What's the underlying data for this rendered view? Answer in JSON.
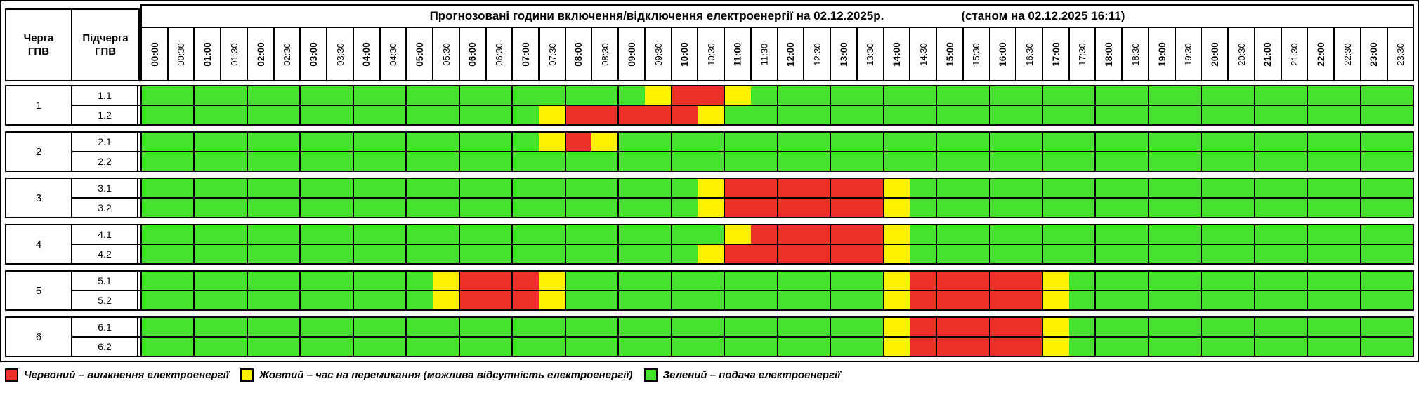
{
  "title": {
    "main": "Прогнозовані години включення/відключення електроенергії на 02.12.2025р.",
    "as_of": "(станом на 02.12.2025 16:11)"
  },
  "left_header": {
    "queue": "Черга\nГПВ",
    "subqueue": "Підчерга\nГПВ"
  },
  "times": [
    "00:00",
    "00:30",
    "01:00",
    "01:30",
    "02:00",
    "02:30",
    "03:00",
    "03:30",
    "04:00",
    "04:30",
    "05:00",
    "05:30",
    "06:00",
    "06:30",
    "07:00",
    "07:30",
    "08:00",
    "08:30",
    "09:00",
    "09:30",
    "10:00",
    "10:30",
    "11:00",
    "11:30",
    "12:00",
    "12:30",
    "13:00",
    "13:30",
    "14:00",
    "14:30",
    "15:00",
    "15:30",
    "16:00",
    "16:30",
    "17:00",
    "17:30",
    "18:00",
    "18:30",
    "19:00",
    "19:30",
    "20:00",
    "20:30",
    "21:00",
    "21:30",
    "22:00",
    "22:30",
    "23:00",
    "23:30"
  ],
  "cell_colors": {
    "G": "#46E22D",
    "Y": "#FFF200",
    "R": "#EB3129"
  },
  "state_names": {
    "G": "power-on",
    "Y": "switching",
    "R": "power-off"
  },
  "groups": [
    {
      "queue": "1",
      "rows": [
        {
          "label": "1.1",
          "cells": "GGGGGGGGGGGGGGGGGGGYRRYGGGGGGGGGGGGGGGGGGGGGGGGG"
        },
        {
          "label": "1.2",
          "cells": "GGGGGGGGGGGGGGGYRRRRRYGGGGGGGGGGGGGGGGGGGGGGGGGG"
        }
      ]
    },
    {
      "queue": "2",
      "rows": [
        {
          "label": "2.1",
          "cells": "GGGGGGGGGGGGGGGYRYGGGGGGGGGGGGGGGGGGGGGGGGGGGGGG"
        },
        {
          "label": "2.2",
          "cells": "GGGGGGGGGGGGGGGGGGGGGGGGGGGGGGGGGGGGGGGGGGGGGGGG"
        }
      ]
    },
    {
      "queue": "3",
      "rows": [
        {
          "label": "3.1",
          "cells": "GGGGGGGGGGGGGGGGGGGGGYRRRRRRYGGGGGGGGGGGGGGGGGGG"
        },
        {
          "label": "3.2",
          "cells": "GGGGGGGGGGGGGGGGGGGGGYRRRRRRYGGGGGGGGGGGGGGGGGGG"
        }
      ]
    },
    {
      "queue": "4",
      "rows": [
        {
          "label": "4.1",
          "cells": "GGGGGGGGGGGGGGGGGGGGGGYRRRRRYGGGGGGGGGGGGGGGGGGG"
        },
        {
          "label": "4.2",
          "cells": "GGGGGGGGGGGGGGGGGGGGGYRRRRRRYGGGGGGGGGGGGGGGGGGG"
        }
      ]
    },
    {
      "queue": "5",
      "rows": [
        {
          "label": "5.1",
          "cells": "GGGGGGGGGGGYRRRYGGGGGGGGGGGGYRRRRRYGGGGGGGGGGGGG"
        },
        {
          "label": "5.2",
          "cells": "GGGGGGGGGGGYRRRYGGGGGGGGGGGGYRRRRRYGGGGGGGGGGGGG"
        }
      ]
    },
    {
      "queue": "6",
      "rows": [
        {
          "label": "6.1",
          "cells": "GGGGGGGGGGGGGGGGGGGGGGGGGGGGYRRRRRYGGGGGGGGGGGGG"
        },
        {
          "label": "6.2",
          "cells": "GGGGGGGGGGGGGGGGGGGGGGGGGGGGYRRRRRYGGGGGGGGGGGGG"
        }
      ]
    }
  ],
  "legend": [
    {
      "key": "R",
      "label": "Червоний – вимкнення електроенергії"
    },
    {
      "key": "Y",
      "label": "Жовтий – час на перемикання (можлива відсутність електроенергії)"
    },
    {
      "key": "G",
      "label": "Зелений – подача електроенергії"
    }
  ]
}
